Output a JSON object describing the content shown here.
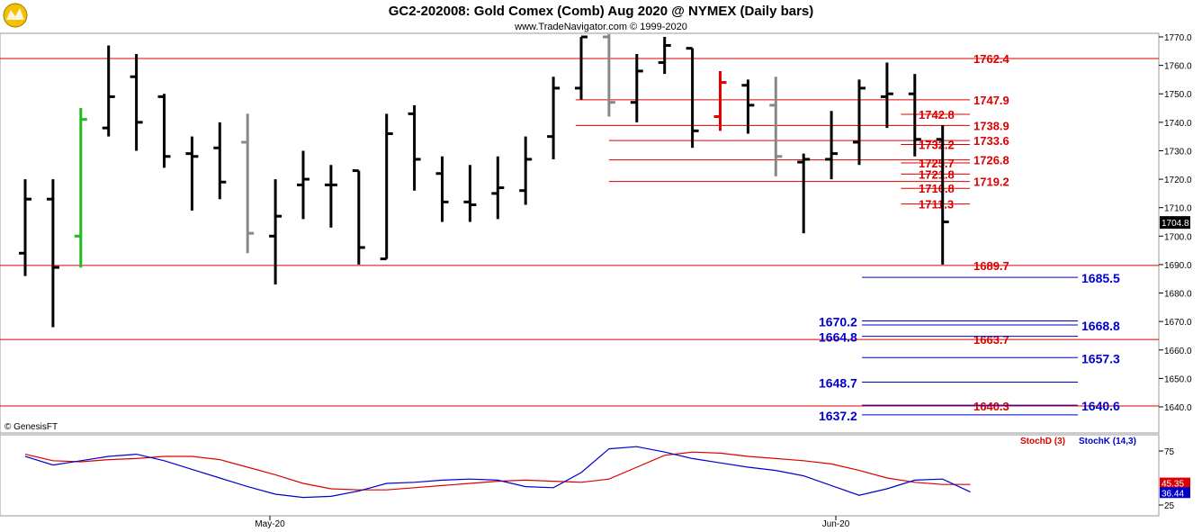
{
  "title": "GC2-202008:  Gold Comex (Comb) Aug 2020 @ NYMEX  (Daily bars)",
  "subtitle": "www.TradeNavigator.com © 1999-2020",
  "copyright": "© GenesisFT",
  "colors": {
    "bar": "#000000",
    "bar_gray": "#888888",
    "bar_red": "#e00000",
    "bar_green": "#22bb22",
    "red_level": "#dd0000",
    "blue_level": "#0000cc",
    "stoch_d": "#dd0000",
    "stoch_k": "#0000cc"
  },
  "icon": "bull-bear-logo-icon",
  "chart_data": [
    {
      "type": "ohlc",
      "title": "GC2-202008:  Gold Comex (Comb) Aug 2020 @ NYMEX  (Daily bars)",
      "ylim": [
        1636,
        1772
      ],
      "y_ticks": [
        "1770.0",
        "1760.0",
        "1750.0",
        "1740.0",
        "1730.0",
        "1720.0",
        "1710.0",
        "1700.0",
        "1690.0",
        "1680.0",
        "1670.0",
        "1660.0",
        "1650.0",
        "1640.0"
      ],
      "x_ticks": [
        "May-20",
        "Jun-20"
      ],
      "last_price": "1704.8",
      "bars": [
        {
          "o": 1694,
          "h": 1720,
          "l": 1686,
          "c": 1713
        },
        {
          "o": 1713,
          "h": 1720,
          "l": 1668,
          "c": 1689
        },
        {
          "o": 1700,
          "h": 1745,
          "l": 1689,
          "c": 1741,
          "color": "green"
        },
        {
          "o": 1738,
          "h": 1767,
          "l": 1735,
          "c": 1749
        },
        {
          "o": 1756,
          "h": 1764,
          "l": 1730,
          "c": 1740
        },
        {
          "o": 1749,
          "h": 1750,
          "l": 1724,
          "c": 1728
        },
        {
          "o": 1729,
          "h": 1735,
          "l": 1709,
          "c": 1728
        },
        {
          "o": 1731,
          "h": 1740,
          "l": 1713,
          "c": 1719
        },
        {
          "o": 1733,
          "h": 1743,
          "l": 1694,
          "c": 1701,
          "color": "gray"
        },
        {
          "o": 1700,
          "h": 1720,
          "l": 1683,
          "c": 1707
        },
        {
          "o": 1718,
          "h": 1730,
          "l": 1706,
          "c": 1720
        },
        {
          "o": 1718,
          "h": 1725,
          "l": 1703,
          "c": 1718
        },
        {
          "o": 1723,
          "h": 1723,
          "l": 1690,
          "c": 1696
        },
        {
          "o": 1692,
          "h": 1743,
          "l": 1692,
          "c": 1736
        },
        {
          "o": 1743,
          "h": 1746,
          "l": 1716,
          "c": 1727
        },
        {
          "o": 1722,
          "h": 1728,
          "l": 1705,
          "c": 1712
        },
        {
          "o": 1712,
          "h": 1725,
          "l": 1705,
          "c": 1711
        },
        {
          "o": 1715,
          "h": 1728,
          "l": 1706,
          "c": 1717
        },
        {
          "o": 1716,
          "h": 1735,
          "l": 1711,
          "c": 1727
        },
        {
          "o": 1735,
          "h": 1756,
          "l": 1727,
          "c": 1752
        },
        {
          "o": 1752,
          "h": 1770,
          "l": 1748,
          "c": 1770
        },
        {
          "o": 1770,
          "h": 1771,
          "l": 1742,
          "c": 1747,
          "color": "gray"
        },
        {
          "o": 1747,
          "h": 1764,
          "l": 1740,
          "c": 1758
        },
        {
          "o": 1761,
          "h": 1770,
          "l": 1757,
          "c": 1767
        },
        {
          "o": 1766,
          "h": 1766,
          "l": 1731,
          "c": 1737
        },
        {
          "o": 1742,
          "h": 1758,
          "l": 1737,
          "c": 1754,
          "color": "red"
        },
        {
          "o": 1753,
          "h": 1755,
          "l": 1736,
          "c": 1746
        },
        {
          "o": 1746,
          "h": 1756,
          "l": 1721,
          "c": 1728,
          "color": "gray"
        },
        {
          "o": 1726,
          "h": 1729,
          "l": 1701,
          "c": 1727
        },
        {
          "o": 1727,
          "h": 1744,
          "l": 1720,
          "c": 1729
        },
        {
          "o": 1733,
          "h": 1755,
          "l": 1725,
          "c": 1752
        },
        {
          "o": 1749,
          "h": 1761,
          "l": 1738,
          "c": 1750
        },
        {
          "o": 1750,
          "h": 1757,
          "l": 1728,
          "c": 1734
        },
        {
          "o": 1734,
          "h": 1739,
          "l": 1690,
          "c": 1705
        }
      ],
      "levels_red": [
        {
          "value": "1762.4",
          "ray_from": -1
        },
        {
          "value": "1747.9",
          "ray_from": 19.8
        },
        {
          "value": "1742.8",
          "ray_from": 31.5
        },
        {
          "value": "1738.9",
          "ray_from": 19.8
        },
        {
          "value": "1733.6",
          "ray_from": 21
        },
        {
          "value": "1732.2",
          "ray_from": 31.5
        },
        {
          "value": "1726.8",
          "ray_from": 21
        },
        {
          "value": "1725.7",
          "ray_from": 31.5
        },
        {
          "value": "1721.8",
          "ray_from": 31.5
        },
        {
          "value": "1719.2",
          "ray_from": 21
        },
        {
          "value": "1716.8",
          "ray_from": 31.5
        },
        {
          "value": "1711.3",
          "ray_from": 31.5
        },
        {
          "value": "1689.7",
          "ray_from": -1
        },
        {
          "value": "1663.7",
          "ray_from": -1
        },
        {
          "value": "1640.3",
          "ray_from": -1
        }
      ],
      "levels_blue": [
        {
          "value": "1685.5",
          "label_side": "right"
        },
        {
          "value": "1670.2",
          "label_side": "left"
        },
        {
          "value": "1668.8",
          "label_side": "right"
        },
        {
          "value": "1664.8",
          "label_side": "left"
        },
        {
          "value": "1657.3",
          "label_side": "right"
        },
        {
          "value": "1648.7",
          "label_side": "left"
        },
        {
          "value": "1640.6",
          "label_side": "right"
        },
        {
          "value": "1637.2",
          "label_side": "left"
        }
      ]
    },
    {
      "type": "line",
      "ylim": [
        15,
        90
      ],
      "y_ticks": [
        "75",
        "25"
      ],
      "legend": [
        "StochD (3)",
        "StochK (14,3)"
      ],
      "series": [
        {
          "name": "StochD (3)",
          "color": "#dd0000",
          "last": "45.35",
          "values": [
            72,
            66,
            65,
            67,
            68,
            70,
            70,
            67,
            60,
            53,
            45,
            40,
            39,
            39,
            41,
            43,
            45,
            47,
            48,
            47,
            46,
            49,
            60,
            71,
            74,
            73,
            70,
            68,
            66,
            63,
            57,
            50,
            46,
            44,
            44
          ]
        },
        {
          "name": "StochK (14,3)",
          "color": "#0000cc",
          "last": "36.44",
          "values": [
            70,
            62,
            66,
            70,
            72,
            66,
            58,
            50,
            42,
            35,
            32,
            33,
            38,
            45,
            46,
            48,
            49,
            48,
            42,
            41,
            55,
            77,
            79,
            74,
            68,
            64,
            60,
            57,
            52,
            43,
            34,
            40,
            48,
            49,
            37
          ]
        }
      ]
    }
  ]
}
